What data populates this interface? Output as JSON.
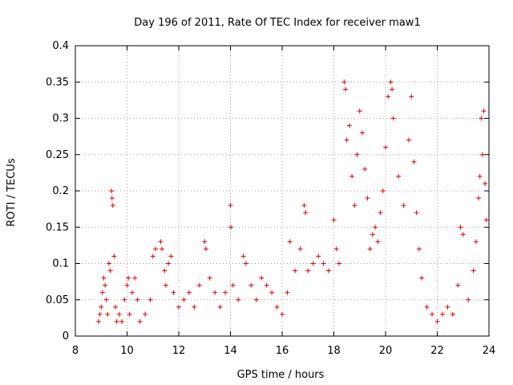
{
  "chart_data": {
    "type": "scatter",
    "title": "Day 196 of 2011, Rate Of TEC Index for receiver maw1",
    "xlabel": "GPS time / hours",
    "ylabel": "ROTI / TECUs",
    "xlim": [
      8,
      24
    ],
    "ylim": [
      0,
      0.4
    ],
    "xticks": [
      "8",
      "10",
      "12",
      "14",
      "16",
      "18",
      "20",
      "22",
      "24"
    ],
    "yticks": [
      "0",
      "0.05",
      "0.1",
      "0.15",
      "0.2",
      "0.25",
      "0.3",
      "0.35",
      "0.4"
    ],
    "grid": true,
    "marker": "+",
    "color": "#e00000",
    "series": [
      {
        "name": "maw1",
        "points": [
          [
            8.9,
            0.02
          ],
          [
            8.95,
            0.03
          ],
          [
            9.0,
            0.04
          ],
          [
            9.05,
            0.06
          ],
          [
            9.1,
            0.08
          ],
          [
            9.15,
            0.07
          ],
          [
            9.2,
            0.05
          ],
          [
            9.25,
            0.03
          ],
          [
            9.3,
            0.1
          ],
          [
            9.35,
            0.09
          ],
          [
            9.4,
            0.2
          ],
          [
            9.42,
            0.19
          ],
          [
            9.45,
            0.18
          ],
          [
            9.5,
            0.11
          ],
          [
            9.55,
            0.04
          ],
          [
            9.6,
            0.02
          ],
          [
            9.7,
            0.03
          ],
          [
            9.8,
            0.02
          ],
          [
            9.9,
            0.05
          ],
          [
            10.0,
            0.07
          ],
          [
            10.05,
            0.08
          ],
          [
            10.1,
            0.03
          ],
          [
            10.2,
            0.06
          ],
          [
            10.3,
            0.08
          ],
          [
            10.4,
            0.05
          ],
          [
            10.5,
            0.02
          ],
          [
            10.7,
            0.03
          ],
          [
            10.9,
            0.05
          ],
          [
            11.0,
            0.11
          ],
          [
            11.1,
            0.12
          ],
          [
            11.3,
            0.13
          ],
          [
            11.35,
            0.12
          ],
          [
            11.45,
            0.09
          ],
          [
            11.5,
            0.07
          ],
          [
            11.6,
            0.1
          ],
          [
            11.7,
            0.11
          ],
          [
            11.8,
            0.06
          ],
          [
            12.0,
            0.04
          ],
          [
            12.2,
            0.05
          ],
          [
            12.4,
            0.06
          ],
          [
            12.6,
            0.04
          ],
          [
            12.8,
            0.07
          ],
          [
            13.0,
            0.13
          ],
          [
            13.05,
            0.12
          ],
          [
            13.2,
            0.08
          ],
          [
            13.4,
            0.06
          ],
          [
            13.6,
            0.04
          ],
          [
            13.8,
            0.06
          ],
          [
            14.0,
            0.18
          ],
          [
            14.02,
            0.15
          ],
          [
            14.1,
            0.07
          ],
          [
            14.3,
            0.05
          ],
          [
            14.5,
            0.11
          ],
          [
            14.6,
            0.1
          ],
          [
            14.8,
            0.07
          ],
          [
            15.0,
            0.05
          ],
          [
            15.2,
            0.08
          ],
          [
            15.4,
            0.07
          ],
          [
            15.6,
            0.06
          ],
          [
            15.8,
            0.04
          ],
          [
            16.0,
            0.03
          ],
          [
            16.2,
            0.06
          ],
          [
            16.3,
            0.13
          ],
          [
            16.5,
            0.09
          ],
          [
            16.7,
            0.12
          ],
          [
            16.85,
            0.18
          ],
          [
            16.9,
            0.17
          ],
          [
            17.0,
            0.09
          ],
          [
            17.2,
            0.1
          ],
          [
            17.4,
            0.11
          ],
          [
            17.6,
            0.1
          ],
          [
            17.8,
            0.09
          ],
          [
            18.0,
            0.16
          ],
          [
            18.1,
            0.12
          ],
          [
            18.2,
            0.1
          ],
          [
            18.4,
            0.35
          ],
          [
            18.45,
            0.34
          ],
          [
            18.5,
            0.27
          ],
          [
            18.6,
            0.29
          ],
          [
            18.7,
            0.22
          ],
          [
            18.8,
            0.18
          ],
          [
            18.9,
            0.25
          ],
          [
            19.0,
            0.31
          ],
          [
            19.1,
            0.28
          ],
          [
            19.2,
            0.23
          ],
          [
            19.3,
            0.19
          ],
          [
            19.4,
            0.12
          ],
          [
            19.5,
            0.14
          ],
          [
            19.6,
            0.15
          ],
          [
            19.7,
            0.13
          ],
          [
            19.8,
            0.17
          ],
          [
            19.9,
            0.2
          ],
          [
            20.0,
            0.26
          ],
          [
            20.1,
            0.33
          ],
          [
            20.2,
            0.35
          ],
          [
            20.25,
            0.34
          ],
          [
            20.3,
            0.3
          ],
          [
            20.5,
            0.22
          ],
          [
            20.7,
            0.18
          ],
          [
            20.9,
            0.27
          ],
          [
            21.0,
            0.33
          ],
          [
            21.1,
            0.24
          ],
          [
            21.2,
            0.17
          ],
          [
            21.3,
            0.12
          ],
          [
            21.4,
            0.08
          ],
          [
            21.6,
            0.04
          ],
          [
            21.8,
            0.03
          ],
          [
            22.0,
            0.02
          ],
          [
            22.2,
            0.03
          ],
          [
            22.4,
            0.04
          ],
          [
            22.6,
            0.03
          ],
          [
            22.8,
            0.07
          ],
          [
            22.9,
            0.15
          ],
          [
            23.0,
            0.14
          ],
          [
            23.2,
            0.05
          ],
          [
            23.4,
            0.09
          ],
          [
            23.5,
            0.13
          ],
          [
            23.6,
            0.19
          ],
          [
            23.65,
            0.22
          ],
          [
            23.7,
            0.3
          ],
          [
            23.75,
            0.25
          ],
          [
            23.8,
            0.31
          ],
          [
            23.85,
            0.21
          ],
          [
            23.9,
            0.16
          ]
        ]
      }
    ]
  }
}
